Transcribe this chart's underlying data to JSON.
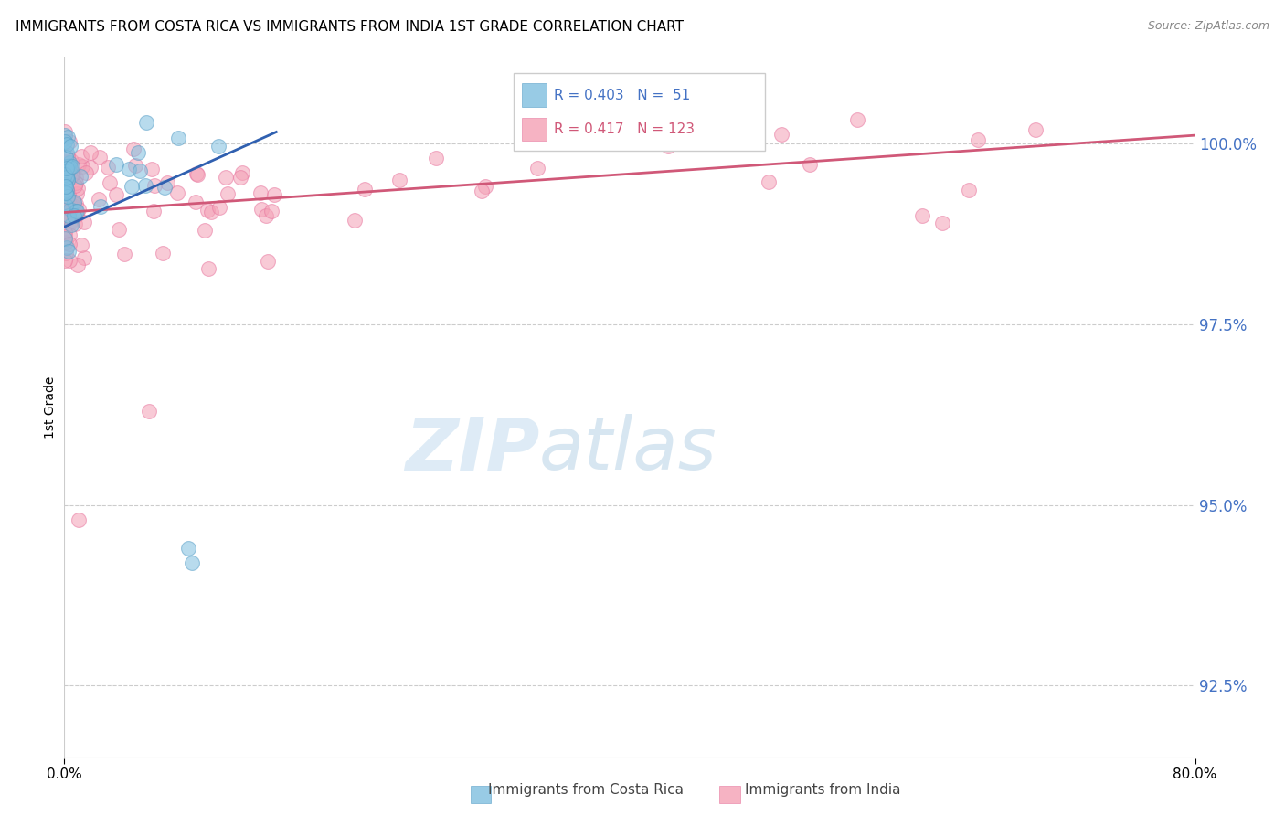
{
  "title": "IMMIGRANTS FROM COSTA RICA VS IMMIGRANTS FROM INDIA 1ST GRADE CORRELATION CHART",
  "source_text": "Source: ZipAtlas.com",
  "ylabel": "1st Grade",
  "y_ticks": [
    92.5,
    95.0,
    97.5,
    100.0
  ],
  "xlim": [
    0.0,
    80.0
  ],
  "ylim": [
    91.5,
    101.2
  ],
  "costa_rica_color": "#7fbfdf",
  "india_color": "#f4a0b5",
  "costa_rica_edge_color": "#5aa0c8",
  "india_edge_color": "#e878a0",
  "costa_rica_line_color": "#3060b0",
  "india_line_color": "#d05878",
  "legend_R_costa_rica": "0.403",
  "legend_N_costa_rica": "51",
  "legend_R_india": "0.417",
  "legend_N_india": "123",
  "tick_color": "#4472C4",
  "grid_color": "#cccccc"
}
